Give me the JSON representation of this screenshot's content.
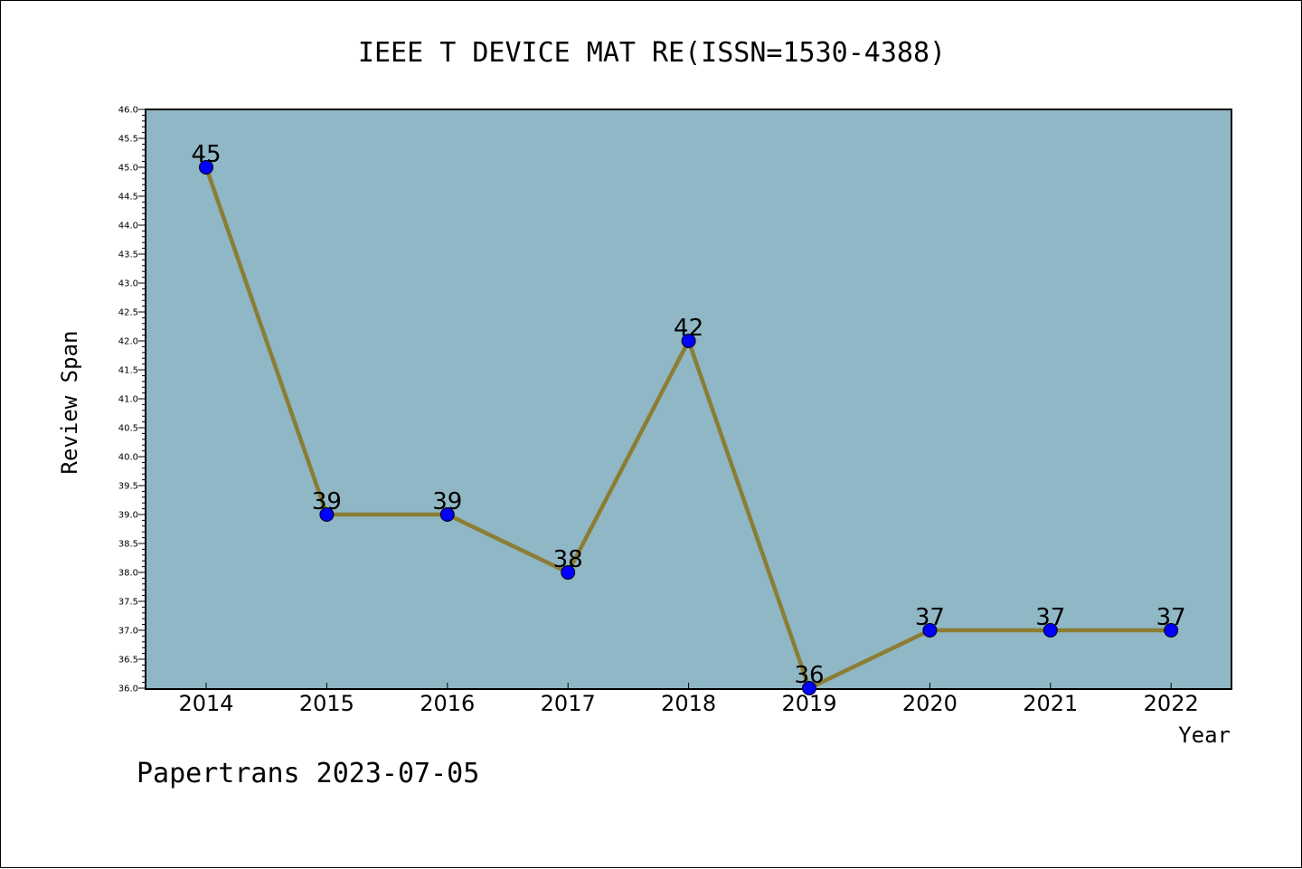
{
  "chart_data": {
    "type": "line",
    "title": "IEEE T DEVICE MAT RE(ISSN=1530-4388)",
    "xlabel": "Year",
    "ylabel": "Review Span",
    "footer": "Papertrans 2023-07-05",
    "categories": [
      "2014",
      "2015",
      "2016",
      "2017",
      "2018",
      "2019",
      "2020",
      "2021",
      "2022"
    ],
    "series": [
      {
        "values": [
          45,
          39,
          39,
          38,
          42,
          36,
          37,
          37,
          37
        ],
        "line_color": "#8b7d33",
        "marker_color": "#0000ff"
      }
    ],
    "ylim": [
      36.0,
      46.0
    ],
    "ytick_step": 0.5,
    "ytick_decimals": 1,
    "grid": false,
    "plot_background": "#8fb7c5"
  }
}
